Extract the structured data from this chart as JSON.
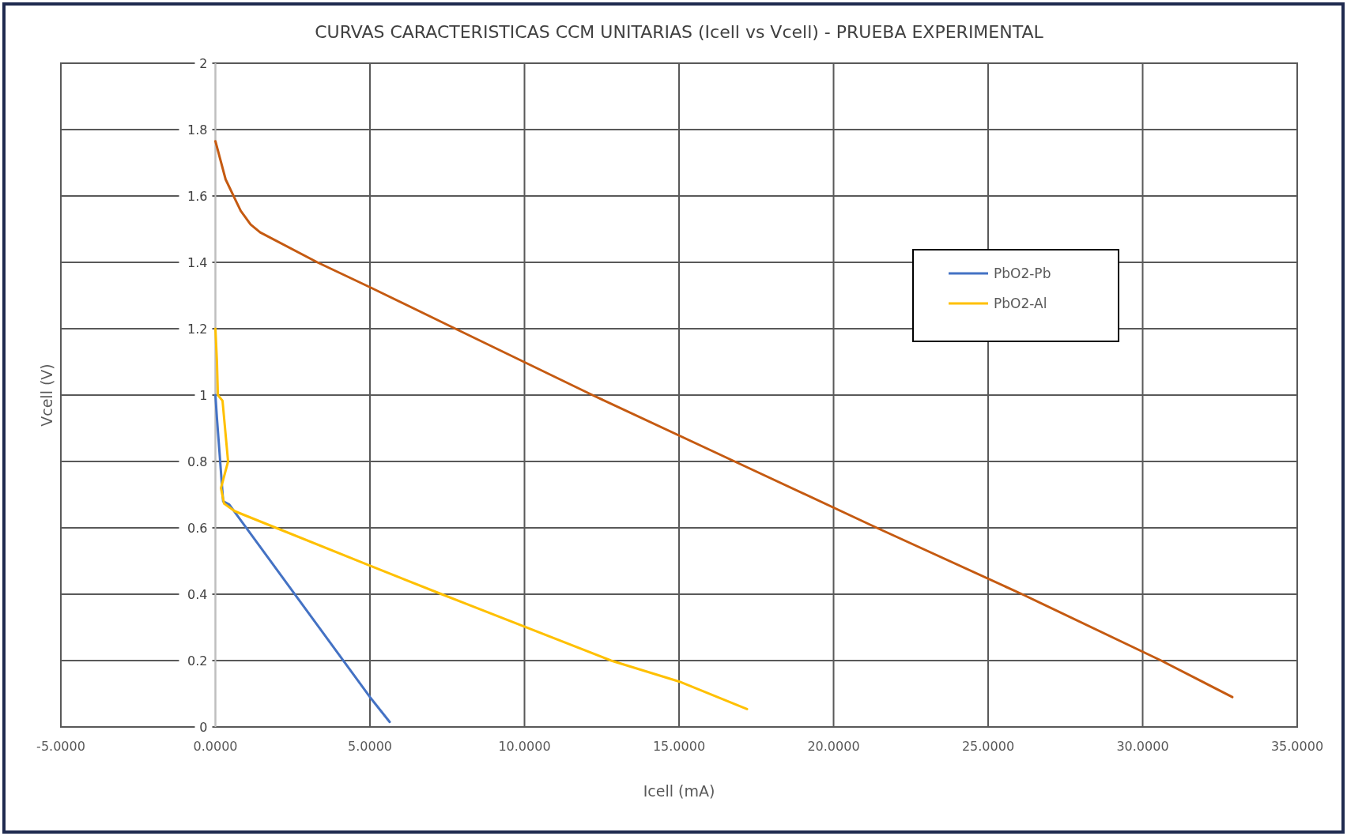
{
  "chart_data": {
    "type": "line",
    "title": "CURVAS CARACTERISTICAS CCM UNITARIAS (Icell vs Vcell) - PRUEBA EXPERIMENTAL",
    "xlabel": "Icell (mA)",
    "ylabel": "Vcell (V)",
    "xlim": [
      -5,
      35
    ],
    "xticks": [
      {
        "value": -5,
        "label": "-5.0000"
      },
      {
        "value": 0,
        "label": "0.0000"
      },
      {
        "value": 5,
        "label": "5.0000"
      },
      {
        "value": 10,
        "label": "10.0000"
      },
      {
        "value": 15,
        "label": "15.0000"
      },
      {
        "value": 20,
        "label": "20.0000"
      },
      {
        "value": 25,
        "label": "25.0000"
      },
      {
        "value": 30,
        "label": "30.0000"
      },
      {
        "value": 35,
        "label": "35.0000"
      }
    ],
    "ylim": [
      0,
      2
    ],
    "yticks": [
      0,
      0.2,
      0.4,
      0.6,
      0.8,
      1,
      1.2,
      1.4,
      1.6,
      1.8,
      2
    ],
    "grid": true,
    "legend": "right",
    "marker": "none",
    "line_style": "solid",
    "series": [
      {
        "name": "PbO2-Pb",
        "color": "#4472c4",
        "x": [
          0,
          0.05,
          0.25,
          0.45,
          5.0,
          5.64
        ],
        "values": [
          1.0,
          0.93,
          0.68,
          0.67,
          0.09,
          0.015
        ]
      },
      {
        "color": "#c55a11",
        "x": [
          0,
          0.33,
          0.69,
          0.82,
          1.14,
          1.45,
          3.3,
          5.0,
          7.83,
          12.2,
          16.8,
          21.4,
          26.1,
          30.6,
          32.9
        ],
        "values": [
          1.765,
          1.65,
          1.58,
          1.555,
          1.514,
          1.49,
          1.4,
          1.325,
          1.197,
          1.0,
          0.8,
          0.6,
          0.4,
          0.2,
          0.09
        ]
      },
      {
        "name": "PbO2-Al",
        "color": "#ffc000",
        "x": [
          0,
          0.05,
          0.08,
          0.23,
          0.41,
          0.18,
          0.28,
          0.63,
          1.96,
          5.0,
          7.32,
          12.8,
          15.0,
          17.2
        ],
        "values": [
          1.2,
          1.1,
          1.0,
          0.983,
          0.8,
          0.72,
          0.673,
          0.65,
          0.6,
          0.486,
          0.4,
          0.2,
          0.137,
          0.054
        ]
      }
    ]
  }
}
